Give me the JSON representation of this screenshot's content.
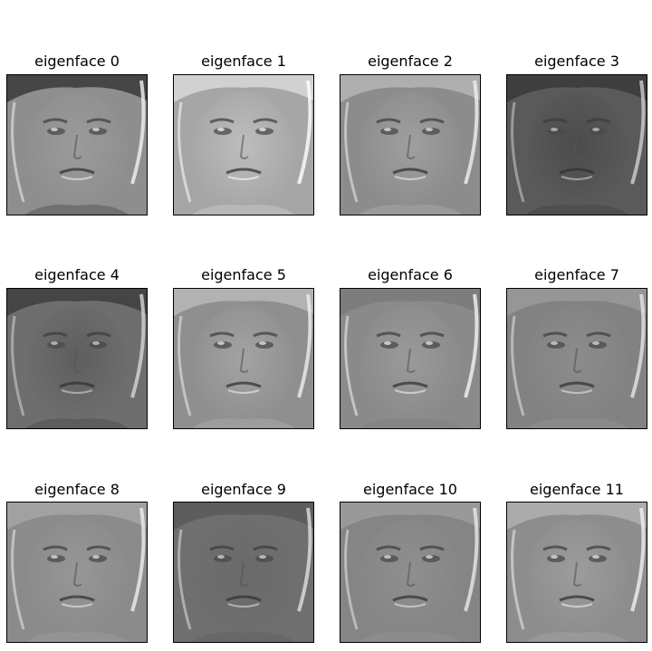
{
  "figure": {
    "panels": [
      {
        "title": "eigenface 0",
        "tone": "#8e8e8e",
        "face": "#9b9b9b",
        "hair": "#3a3a3a",
        "edge": "#f2f2f2"
      },
      {
        "title": "eigenface 1",
        "tone": "#a6a6a6",
        "face": "#bdbdbd",
        "hair": "#d8d8d8",
        "edge": "#ffffff"
      },
      {
        "title": "eigenface 2",
        "tone": "#8c8c8c",
        "face": "#9f9f9f",
        "hair": "#b5b5b5",
        "edge": "#f0f0f0"
      },
      {
        "title": "eigenface 3",
        "tone": "#5a5a5a",
        "face": "#4c4c4c",
        "hair": "#3a3a3a",
        "edge": "#cfcfcf"
      },
      {
        "title": "eigenface 4",
        "tone": "#6e6e6e",
        "face": "#5e5e5e",
        "hair": "#3e3e3e",
        "edge": "#d6d6d6"
      },
      {
        "title": "eigenface 5",
        "tone": "#8f8f8f",
        "face": "#a3a3a3",
        "hair": "#b8b8b8",
        "edge": "#eeeeee"
      },
      {
        "title": "eigenface 6",
        "tone": "#8a8a8a",
        "face": "#9a9a9a",
        "hair": "#7a7a7a",
        "edge": "#f4f4f4"
      },
      {
        "title": "eigenface 7",
        "tone": "#828282",
        "face": "#8c8c8c",
        "hair": "#9a9a9a",
        "edge": "#e6e6e6"
      },
      {
        "title": "eigenface 8",
        "tone": "#8b8b8b",
        "face": "#969696",
        "hair": "#a4a4a4",
        "edge": "#ededed"
      },
      {
        "title": "eigenface 9",
        "tone": "#6f6f6f",
        "face": "#6a6a6a",
        "hair": "#5a5a5a",
        "edge": "#e0e0e0"
      },
      {
        "title": "eigenface 10",
        "tone": "#858585",
        "face": "#8f8f8f",
        "hair": "#9c9c9c",
        "edge": "#e8e8e8"
      },
      {
        "title": "eigenface 11",
        "tone": "#8d8d8d",
        "face": "#9c9c9c",
        "hair": "#b0b0b0",
        "edge": "#f1f1f1"
      }
    ]
  }
}
